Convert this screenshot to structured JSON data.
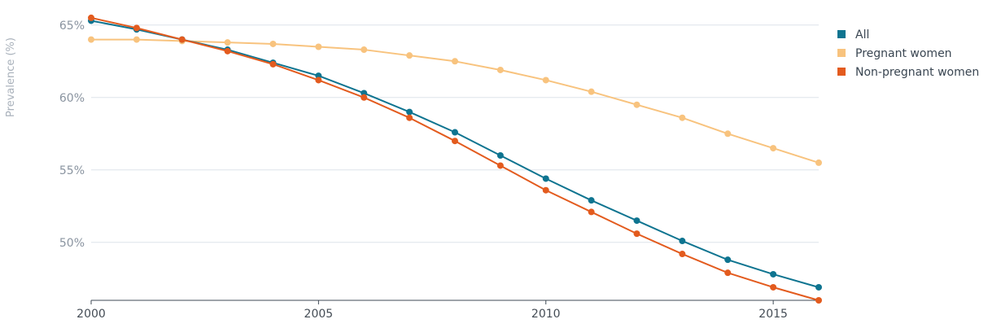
{
  "chart_data": {
    "type": "line",
    "ylabel": "Prevalence (%)",
    "xlabel": "",
    "xlim": [
      2000,
      2016
    ],
    "ylim": [
      46,
      66
    ],
    "x_ticks": [
      2000,
      2005,
      2010,
      2015
    ],
    "y_ticks": [
      50,
      55,
      60,
      65
    ],
    "y_tick_labels": [
      "50%",
      "55%",
      "60%",
      "65%"
    ],
    "grid": "horizontal",
    "legend_position": "top-right",
    "x": [
      2000,
      2001,
      2002,
      2003,
      2004,
      2005,
      2006,
      2007,
      2008,
      2009,
      2010,
      2011,
      2012,
      2013,
      2014,
      2015,
      2016
    ],
    "series": [
      {
        "name": "All",
        "color": "#0e7490",
        "values": [
          65.3,
          64.7,
          64.0,
          63.3,
          62.4,
          61.5,
          60.3,
          59.0,
          57.6,
          56.0,
          54.4,
          52.9,
          51.5,
          50.1,
          48.8,
          47.8,
          46.9
        ]
      },
      {
        "name": "Pregnant women",
        "color": "#f8c37e",
        "values": [
          64.0,
          64.0,
          63.9,
          63.8,
          63.7,
          63.5,
          63.3,
          62.9,
          62.5,
          61.9,
          61.2,
          60.4,
          59.5,
          58.6,
          57.5,
          56.5,
          55.5
        ]
      },
      {
        "name": "Non-pregnant women",
        "color": "#e35b1e",
        "values": [
          65.5,
          64.8,
          64.0,
          63.2,
          62.3,
          61.2,
          60.0,
          58.6,
          57.0,
          55.3,
          53.6,
          52.1,
          50.6,
          49.2,
          47.9,
          46.9,
          46.0
        ]
      }
    ]
  }
}
